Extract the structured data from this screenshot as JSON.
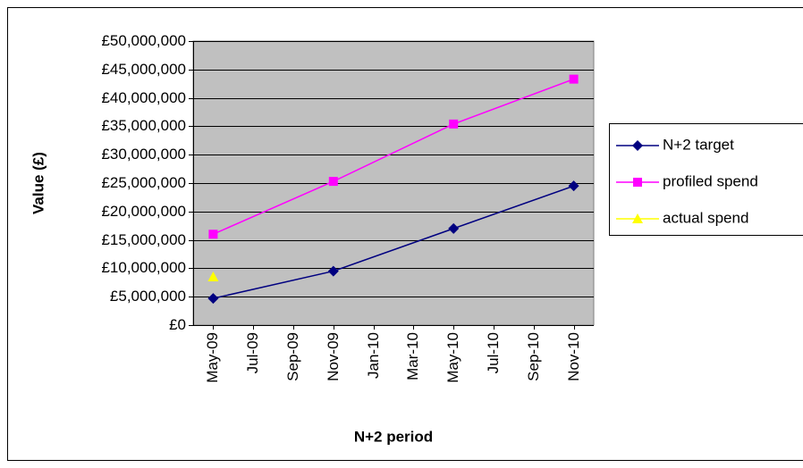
{
  "chart_data": {
    "type": "line",
    "x": [
      "2009-05",
      "2009-11",
      "2010-05",
      "2010-11"
    ],
    "series": [
      {
        "name": "N+2 target",
        "color": "#000080",
        "marker": "diamond",
        "values": [
          4700000,
          9500000,
          17000000,
          24500000
        ]
      },
      {
        "name": "profiled spend",
        "color": "#ff00ff",
        "marker": "square",
        "values": [
          16000000,
          25300000,
          35400000,
          43300000
        ]
      },
      {
        "name": "actual spend",
        "color": "#ffff00",
        "marker": "triangle",
        "values": [
          8500000,
          null,
          null,
          null
        ]
      }
    ],
    "xlabel": "N+2 period",
    "ylabel": "Value (£)",
    "xlim": [
      "2009-04",
      "2010-12"
    ],
    "xticks": [
      {
        "value": "2009-05",
        "label": "May-09"
      },
      {
        "value": "2009-07",
        "label": "Jul-09"
      },
      {
        "value": "2009-09",
        "label": "Sep-09"
      },
      {
        "value": "2009-11",
        "label": "Nov-09"
      },
      {
        "value": "2010-01",
        "label": "Jan-10"
      },
      {
        "value": "2010-03",
        "label": "Mar-10"
      },
      {
        "value": "2010-05",
        "label": "May-10"
      },
      {
        "value": "2010-07",
        "label": "Jul-10"
      },
      {
        "value": "2010-09",
        "label": "Sep-10"
      },
      {
        "value": "2010-11",
        "label": "Nov-10"
      }
    ],
    "ylim": [
      0,
      50000000
    ],
    "yticks": [
      {
        "value": 0,
        "label": "£0"
      },
      {
        "value": 5000000,
        "label": "£5,000,000"
      },
      {
        "value": 10000000,
        "label": "£10,000,000"
      },
      {
        "value": 15000000,
        "label": "£15,000,000"
      },
      {
        "value": 20000000,
        "label": "£20,000,000"
      },
      {
        "value": 25000000,
        "label": "£25,000,000"
      },
      {
        "value": 30000000,
        "label": "£30,000,000"
      },
      {
        "value": 35000000,
        "label": "£35,000,000"
      },
      {
        "value": 40000000,
        "label": "£40,000,000"
      },
      {
        "value": 45000000,
        "label": "£45,000,000"
      },
      {
        "value": 50000000,
        "label": "£50,000,000"
      }
    ],
    "grid": true,
    "legend": "right"
  }
}
